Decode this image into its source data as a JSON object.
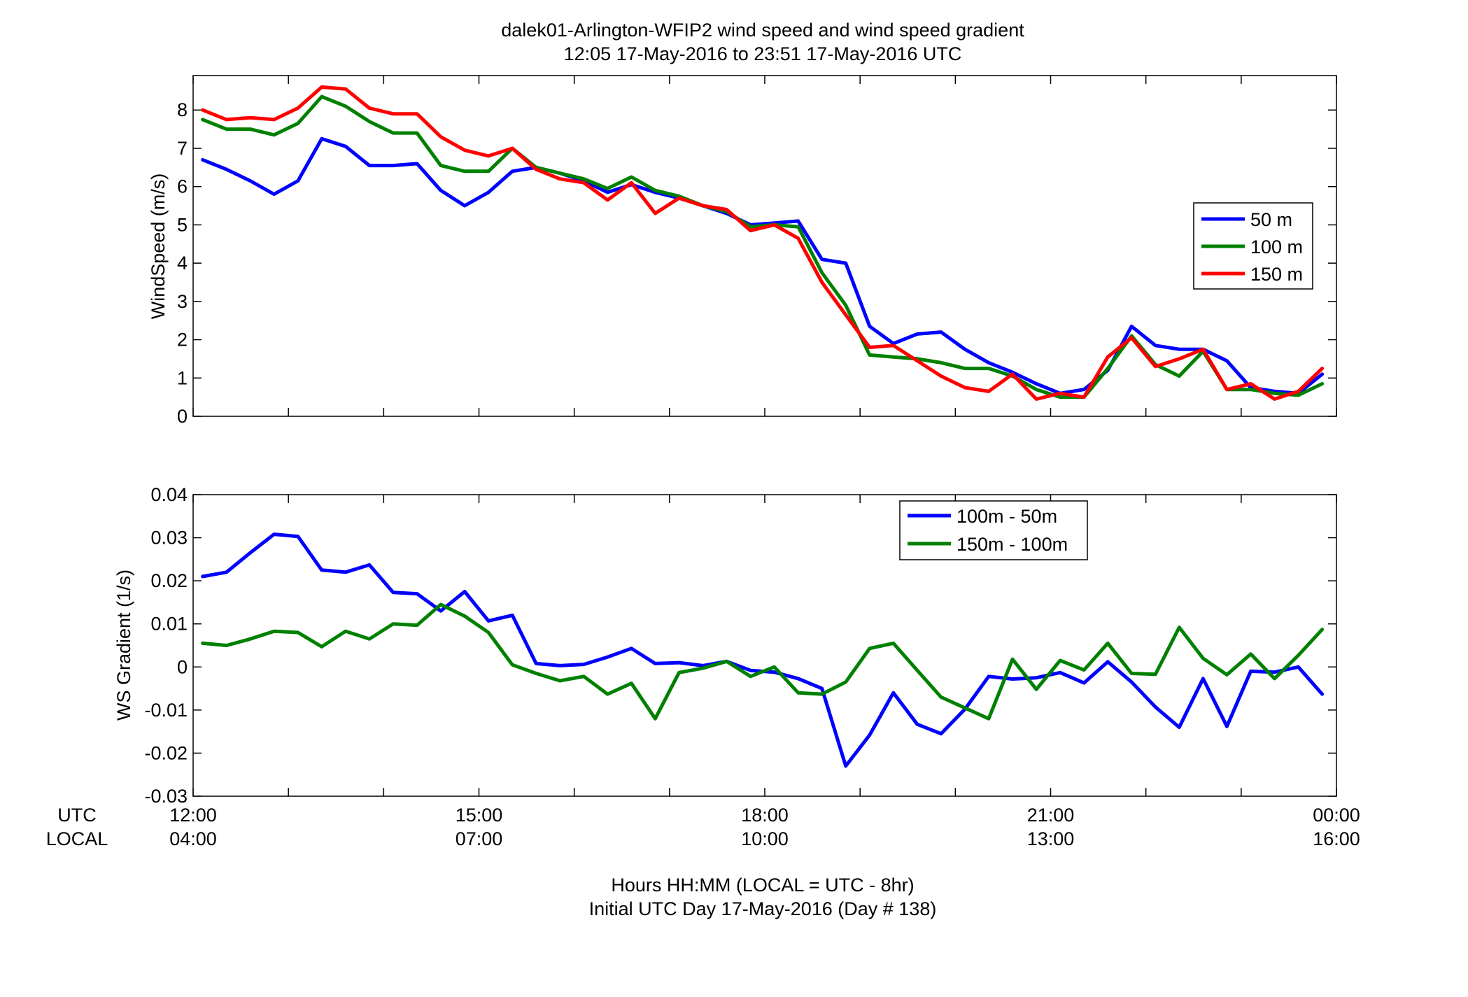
{
  "title_line1": "dalek01-Arlington-WFIP2  wind speed and wind speed gradient",
  "title_line2": "12:05 17-May-2016 to 23:51 17-May-2016  UTC",
  "xlabel_line1": "Hours HH:MM  (LOCAL = UTC - 8hr)",
  "xlabel_line2": "Initial UTC Day 17-May-2016 (Day # 138)",
  "utc_row_label": "UTC",
  "local_row_label": "LOCAL",
  "chart_data": [
    {
      "type": "line",
      "ylabel": "WindSpeed (m/s)",
      "xlim": [
        12.0,
        24.0
      ],
      "ylim": [
        0,
        8.9
      ],
      "yticks": [
        0,
        1,
        2,
        3,
        4,
        5,
        6,
        7,
        8
      ],
      "grid": false,
      "legend_position": "right",
      "x_unit": "hours UTC",
      "x": [
        12.1,
        12.35,
        12.6,
        12.85,
        13.1,
        13.35,
        13.6,
        13.85,
        14.1,
        14.35,
        14.6,
        14.85,
        15.1,
        15.35,
        15.6,
        15.85,
        16.1,
        16.35,
        16.6,
        16.85,
        17.1,
        17.35,
        17.6,
        17.85,
        18.1,
        18.35,
        18.6,
        18.85,
        19.1,
        19.35,
        19.6,
        19.85,
        20.1,
        20.35,
        20.6,
        20.85,
        21.1,
        21.35,
        21.6,
        21.85,
        22.1,
        22.35,
        22.6,
        22.85,
        23.1,
        23.35,
        23.6,
        23.85
      ],
      "series": [
        {
          "name": "50 m",
          "color": "#0000ff",
          "values": [
            6.7,
            6.45,
            6.15,
            5.8,
            6.15,
            7.25,
            7.05,
            6.55,
            6.55,
            6.6,
            5.9,
            5.5,
            5.85,
            6.4,
            6.5,
            6.35,
            6.15,
            5.85,
            6.05,
            5.85,
            5.7,
            5.5,
            5.3,
            5.0,
            5.05,
            5.1,
            4.1,
            4.0,
            2.35,
            1.9,
            2.15,
            2.2,
            1.75,
            1.4,
            1.15,
            0.85,
            0.6,
            0.7,
            1.2,
            2.35,
            1.85,
            1.75,
            1.75,
            1.45,
            0.75,
            0.65,
            0.6,
            1.1
          ]
        },
        {
          "name": "100 m",
          "color": "#008000",
          "values": [
            7.75,
            7.5,
            7.5,
            7.35,
            7.65,
            8.35,
            8.1,
            7.7,
            7.4,
            7.4,
            6.55,
            6.4,
            6.4,
            7.0,
            6.5,
            6.35,
            6.2,
            5.95,
            6.25,
            5.9,
            5.75,
            5.5,
            5.35,
            4.95,
            5.0,
            4.95,
            3.75,
            2.9,
            1.6,
            1.55,
            1.5,
            1.4,
            1.25,
            1.25,
            1.05,
            0.7,
            0.5,
            0.5,
            1.25,
            2.1,
            1.35,
            1.05,
            1.7,
            0.7,
            0.7,
            0.6,
            0.55,
            0.85
          ]
        },
        {
          "name": "150 m",
          "color": "#ff0000",
          "values": [
            8.0,
            7.75,
            7.8,
            7.75,
            8.05,
            8.6,
            8.55,
            8.05,
            7.9,
            7.9,
            7.3,
            6.95,
            6.8,
            7.0,
            6.45,
            6.2,
            6.1,
            5.65,
            6.1,
            5.3,
            5.7,
            5.5,
            5.4,
            4.85,
            5.0,
            4.65,
            3.5,
            2.65,
            1.8,
            1.85,
            1.45,
            1.05,
            0.75,
            0.65,
            1.1,
            0.45,
            0.6,
            0.5,
            1.55,
            2.05,
            1.3,
            1.5,
            1.75,
            0.7,
            0.85,
            0.45,
            0.65,
            1.25
          ]
        }
      ]
    },
    {
      "type": "line",
      "ylabel": "WS Gradient (1/s)",
      "xlim": [
        12.0,
        24.0
      ],
      "ylim": [
        -0.03,
        0.04
      ],
      "yticks": [
        -0.03,
        -0.02,
        -0.01,
        0,
        0.01,
        0.02,
        0.03,
        0.04
      ],
      "grid": false,
      "legend_position": "top-center",
      "x_unit": "hours UTC",
      "x": [
        12.1,
        12.35,
        12.6,
        12.85,
        13.1,
        13.35,
        13.6,
        13.85,
        14.1,
        14.35,
        14.6,
        14.85,
        15.1,
        15.35,
        15.6,
        15.85,
        16.1,
        16.35,
        16.6,
        16.85,
        17.1,
        17.35,
        17.6,
        17.85,
        18.1,
        18.35,
        18.6,
        18.85,
        19.1,
        19.35,
        19.6,
        19.85,
        20.1,
        20.35,
        20.6,
        20.85,
        21.1,
        21.35,
        21.6,
        21.85,
        22.1,
        22.35,
        22.6,
        22.85,
        23.1,
        23.35,
        23.6,
        23.85
      ],
      "series": [
        {
          "name": "100m - 50m",
          "color": "#0000ff",
          "values": [
            0.021,
            0.022,
            0.0265,
            0.0308,
            0.0303,
            0.0225,
            0.022,
            0.0237,
            0.0173,
            0.017,
            0.013,
            0.0175,
            0.0107,
            0.012,
            0.0008,
            0.0003,
            0.0006,
            0.0023,
            0.0043,
            0.0008,
            0.001,
            0.0003,
            0.0013,
            -0.0008,
            -0.0012,
            -0.0027,
            -0.005,
            -0.023,
            -0.0158,
            -0.006,
            -0.0133,
            -0.0155,
            -0.0098,
            -0.0022,
            -0.0028,
            -0.0025,
            -0.0013,
            -0.0037,
            0.0012,
            -0.0035,
            -0.0093,
            -0.014,
            -0.0027,
            -0.0138,
            -0.001,
            -0.0012,
            0.0,
            -0.0063
          ]
        },
        {
          "name": "150m - 100m",
          "color": "#008000",
          "values": [
            0.0055,
            0.005,
            0.0065,
            0.0083,
            0.008,
            0.0047,
            0.0083,
            0.0065,
            0.01,
            0.0097,
            0.0145,
            0.0118,
            0.008,
            0.0005,
            -0.0015,
            -0.0032,
            -0.0022,
            -0.0063,
            -0.0038,
            -0.012,
            -0.0013,
            -0.0003,
            0.0013,
            -0.0022,
            0.0,
            -0.006,
            -0.0063,
            -0.0035,
            0.0043,
            0.0055,
            -0.0008,
            -0.007,
            -0.0095,
            -0.012,
            0.0018,
            -0.0052,
            0.0015,
            -0.0007,
            0.0055,
            -0.0015,
            -0.0017,
            0.0092,
            0.002,
            -0.0018,
            0.003,
            -0.0027,
            0.0027,
            0.0087
          ]
        }
      ]
    }
  ],
  "x_ticks": [
    {
      "utc": "12:00",
      "local": "04:00",
      "hour": 12
    },
    {
      "utc": "15:00",
      "local": "07:00",
      "hour": 15
    },
    {
      "utc": "18:00",
      "local": "10:00",
      "hour": 18
    },
    {
      "utc": "21:00",
      "local": "13:00",
      "hour": 21
    },
    {
      "utc": "00:00",
      "local": "16:00",
      "hour": 24
    }
  ]
}
